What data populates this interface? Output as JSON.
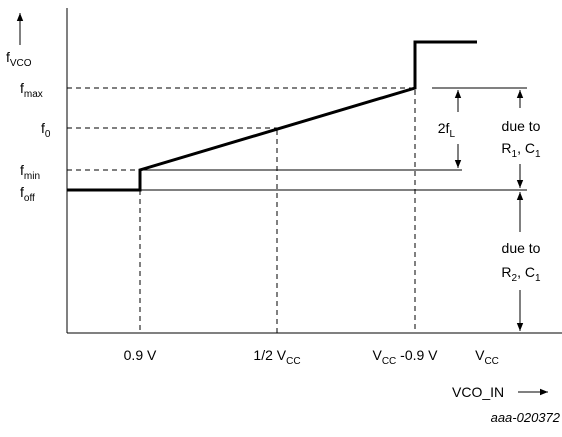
{
  "y_labels": [
    [
      {
        "text": "f"
      },
      {
        "sub": "VCO"
      }
    ],
    [
      {
        "text": "f"
      },
      {
        "sub": "max"
      }
    ],
    [
      {
        "text": "f"
      },
      {
        "sub": "0"
      }
    ],
    [
      {
        "text": "f"
      },
      {
        "sub": "min"
      }
    ],
    [
      {
        "text": "f"
      },
      {
        "sub": "off"
      }
    ]
  ],
  "x_labels": [
    [
      {
        "text": "0.9 V"
      }
    ],
    [
      {
        "text": "1/2 V"
      },
      {
        "sub": "CC"
      }
    ],
    [
      {
        "text": "V"
      },
      {
        "sub": "CC"
      },
      {
        "text": " -0.9 V"
      }
    ],
    [
      {
        "text": "V"
      },
      {
        "sub": "CC"
      }
    ]
  ],
  "annotations": [
    [
      {
        "text": "2f"
      },
      {
        "sub": "L"
      }
    ],
    [
      {
        "text": "due to"
      }
    ],
    [
      {
        "text": "R"
      },
      {
        "sub": "1"
      },
      {
        "text": ", C"
      },
      {
        "sub": "1"
      }
    ],
    [
      {
        "text": "due to"
      }
    ],
    [
      {
        "text": "R"
      },
      {
        "sub": "2"
      },
      {
        "text": ", C"
      },
      {
        "sub": "1"
      }
    ]
  ],
  "x_axis_label": "VCO_IN",
  "figure_id": "aaa-020372"
}
